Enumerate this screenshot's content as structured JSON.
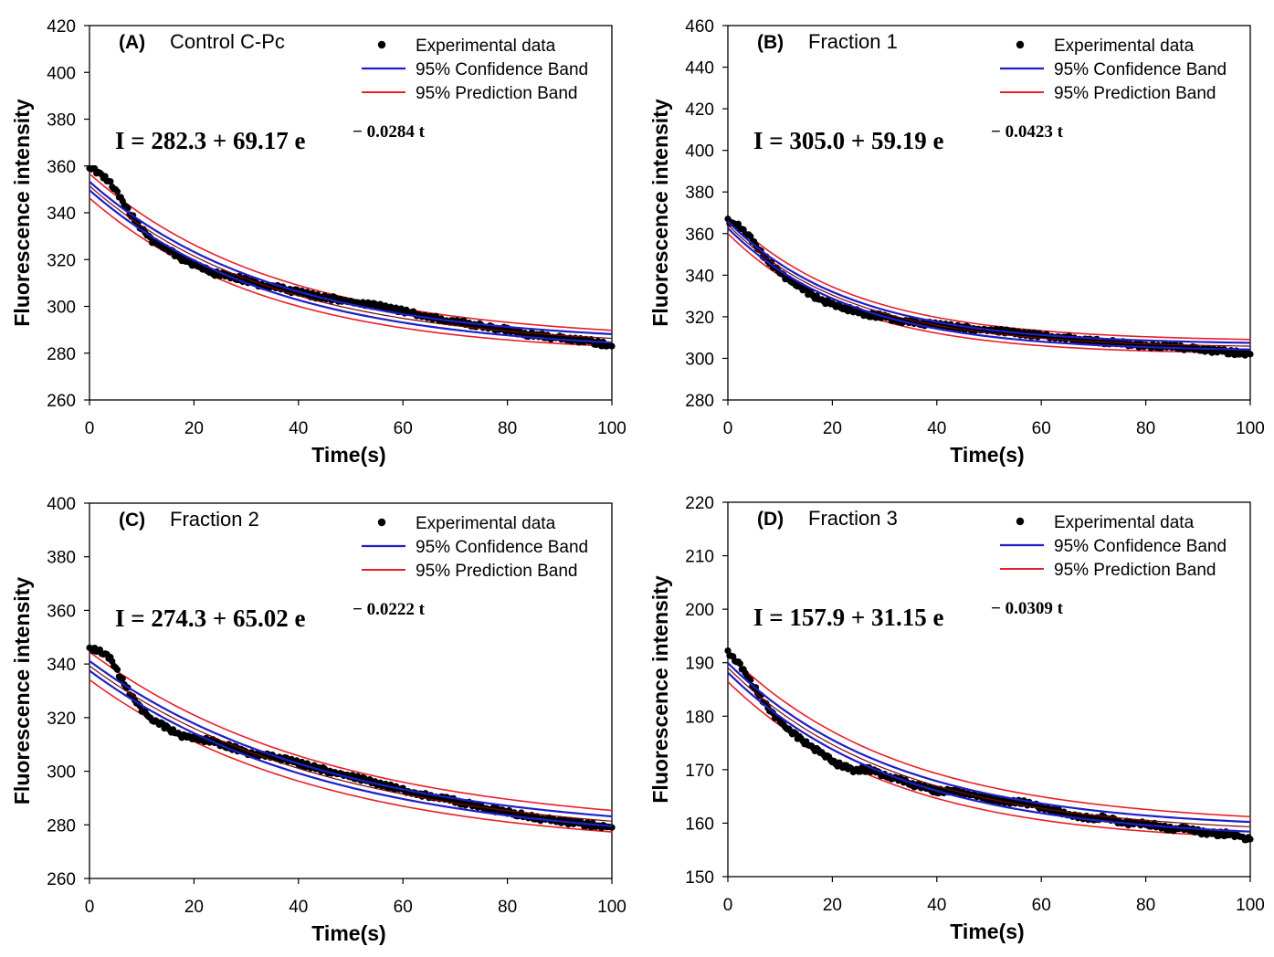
{
  "figure_title": "",
  "colors": {
    "data": "#000000",
    "confidence": "#1f1fc8",
    "prediction": "#e8202a",
    "axis": "#000000"
  },
  "chart_data": [
    {
      "type": "scatter",
      "panel_letter": "(A)",
      "panel_name": "Control C-Pc",
      "title": "(A) Control C-Pc",
      "xlabel": "Time(s)",
      "ylabel": "Fluorescence intensity",
      "xlim": [
        0,
        100
      ],
      "ylim": [
        260,
        420
      ],
      "xticks": [
        "0",
        "20",
        "40",
        "60",
        "80",
        "100"
      ],
      "yticks": [
        "260",
        "280",
        "300",
        "320",
        "340",
        "360",
        "380",
        "400",
        "420"
      ],
      "legend": [
        "Experimental data",
        "95% Confidence Band",
        "95% Prediction Band"
      ],
      "legend_position": "top-right",
      "equation": "I = 282.3 + 69.17 e",
      "equation_exponent": "− 0.0284 t",
      "fit": {
        "y0": 282.3,
        "a": 69.17,
        "k": 0.0284
      },
      "confidence_halfwidth": 1.8,
      "prediction_halfwidth": [
        5.2,
        3.4
      ],
      "series": [
        {
          "name": "Experimental data",
          "x": [
            0,
            2,
            4,
            6,
            8,
            10,
            12,
            15,
            18,
            21,
            24,
            27,
            30,
            33,
            36,
            40,
            44,
            48,
            52,
            56,
            60,
            64,
            68,
            72,
            76,
            80,
            84,
            88,
            92,
            96,
            100
          ],
          "values": [
            359,
            357,
            353,
            346,
            339,
            333,
            328,
            324,
            320,
            317,
            314,
            313,
            311,
            309,
            308,
            306,
            304,
            303,
            301,
            300,
            298,
            296,
            294,
            293,
            291,
            290,
            288,
            287,
            286,
            285,
            283
          ]
        }
      ]
    },
    {
      "type": "scatter",
      "panel_letter": "(B)",
      "panel_name": "Fraction 1",
      "title": "(B) Fraction 1",
      "xlabel": "Time(s)",
      "ylabel": "Fluorescence intensity",
      "xlim": [
        0,
        100
      ],
      "ylim": [
        280,
        460
      ],
      "xticks": [
        "0",
        "20",
        "40",
        "60",
        "80",
        "100"
      ],
      "yticks": [
        "280",
        "300",
        "320",
        "340",
        "360",
        "380",
        "400",
        "420",
        "440",
        "460"
      ],
      "legend": [
        "Experimental data",
        "95% Confidence Band",
        "95% Prediction Band"
      ],
      "legend_position": "top-right",
      "equation": "I = 305.0 + 59.19 e",
      "equation_exponent": "− 0.0423 t",
      "fit": {
        "y0": 305.0,
        "a": 59.19,
        "k": 0.0423
      },
      "confidence_halfwidth": 1.6,
      "prediction_halfwidth": [
        4.2,
        3.2
      ],
      "series": [
        {
          "name": "Experimental data",
          "x": [
            0,
            2,
            4,
            6,
            8,
            10,
            12,
            15,
            18,
            21,
            24,
            27,
            30,
            33,
            36,
            40,
            44,
            48,
            52,
            56,
            60,
            64,
            68,
            72,
            76,
            80,
            84,
            88,
            92,
            96,
            100
          ],
          "values": [
            366,
            364,
            359,
            352,
            346,
            341,
            337,
            332,
            328,
            325,
            323,
            321,
            320,
            318,
            317,
            316,
            315,
            314,
            313,
            312,
            311,
            310,
            309,
            308,
            307,
            306,
            306,
            305,
            304,
            303,
            302
          ]
        }
      ]
    },
    {
      "type": "scatter",
      "panel_letter": "(C)",
      "panel_name": "Fraction 2",
      "title": "(C) Fraction 2",
      "xlabel": "Time(s)",
      "ylabel": "Fluorescence intensity",
      "xlim": [
        0,
        100
      ],
      "ylim": [
        260,
        400
      ],
      "xticks": [
        "0",
        "20",
        "40",
        "60",
        "80",
        "100"
      ],
      "yticks": [
        "260",
        "280",
        "300",
        "320",
        "340",
        "360",
        "380",
        "400"
      ],
      "legend": [
        "Experimental data",
        "95% Confidence Band",
        "95% Prediction Band"
      ],
      "legend_position": "top-right",
      "equation": "I = 274.3 + 65.02 e",
      "equation_exponent": "− 0.0222 t",
      "fit": {
        "y0": 274.3,
        "a": 65.02,
        "k": 0.0222
      },
      "confidence_halfwidth": 1.8,
      "prediction_halfwidth": [
        5.2,
        4.0
      ],
      "series": [
        {
          "name": "Experimental data",
          "x": [
            0,
            2,
            4,
            6,
            8,
            10,
            12,
            15,
            18,
            21,
            24,
            27,
            30,
            33,
            36,
            40,
            44,
            48,
            52,
            56,
            60,
            64,
            68,
            72,
            76,
            80,
            84,
            88,
            92,
            96,
            100
          ],
          "values": [
            346,
            345,
            342,
            335,
            328,
            323,
            319,
            316,
            313,
            312,
            311,
            309,
            307,
            306,
            305,
            303,
            301,
            299,
            297,
            295,
            293,
            291,
            290,
            288,
            286,
            285,
            283,
            282,
            281,
            280,
            279
          ]
        }
      ]
    },
    {
      "type": "scatter",
      "panel_letter": "(D)",
      "panel_name": "Fraction 3",
      "title": "(D) Fraction 3",
      "xlabel": "Time(s)",
      "ylabel": "Fluorescence intensity",
      "xlim": [
        0,
        100
      ],
      "ylim": [
        150,
        220
      ],
      "xticks": [
        "0",
        "20",
        "40",
        "60",
        "80",
        "100"
      ],
      "yticks": [
        "150",
        "160",
        "170",
        "180",
        "190",
        "200",
        "210",
        "220"
      ],
      "legend": [
        "Experimental data",
        "95% Confidence Band",
        "95% Prediction Band"
      ],
      "legend_position": "top-right",
      "equation": "I = 157.9 + 31.15 e",
      "equation_exponent": "− 0.0309 t",
      "fit": {
        "y0": 157.9,
        "a": 31.15,
        "k": 0.0309
      },
      "confidence_halfwidth": 0.9,
      "prediction_halfwidth": [
        2.6,
        1.9
      ],
      "series": [
        {
          "name": "Experimental data",
          "x": [
            0,
            2,
            4,
            6,
            8,
            10,
            12,
            15,
            18,
            21,
            24,
            27,
            30,
            33,
            36,
            40,
            44,
            48,
            52,
            56,
            60,
            64,
            68,
            72,
            76,
            80,
            84,
            88,
            92,
            96,
            100
          ],
          "values": [
            192,
            190,
            187,
            184,
            181,
            179,
            177,
            175,
            173,
            171,
            170,
            170,
            169,
            168,
            167,
            166,
            166,
            165,
            164,
            164,
            163,
            162,
            161,
            161,
            160,
            160,
            159,
            159,
            158,
            158,
            157
          ]
        }
      ]
    }
  ]
}
